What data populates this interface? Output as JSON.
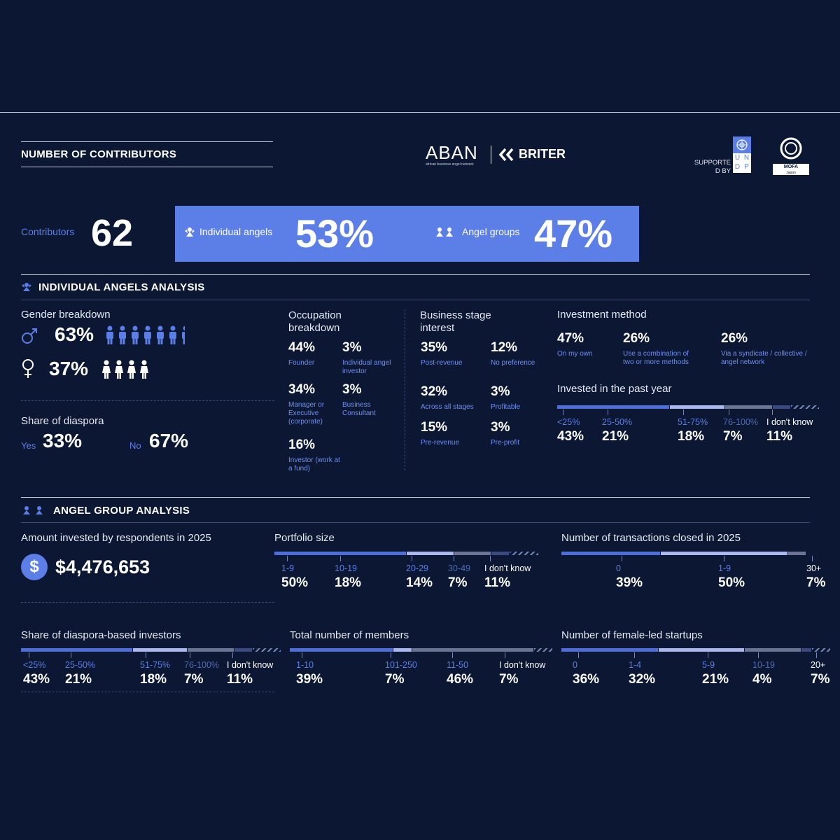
{
  "header": {
    "section_title": "NUMBER OF CONTRIBUTORS",
    "logo_aban": "ABAN",
    "logo_aban_sub": "african business angel network",
    "logo_briter": "BRITER",
    "supported_by": "SUPPORTE D BY",
    "undp_letters": [
      "U",
      "N",
      "D",
      "P"
    ],
    "mofa_label": "MOFA",
    "mofa_sub": "Japan"
  },
  "contributors": {
    "label": "Contributors",
    "value": "62",
    "individual_label": "Individual angels",
    "individual_value": "53%",
    "groups_label": "Angel groups",
    "groups_value": "47%"
  },
  "individual": {
    "title": "INDIVIDUAL ANGELS ANALYSIS",
    "gender": {
      "label": "Gender breakdown",
      "male_value": "63%",
      "female_value": "37%",
      "male_share": 0.63,
      "female_share": 0.37
    },
    "diaspora": {
      "label": "Share of diaspora",
      "yes_label": "Yes",
      "yes_value": "33%",
      "no_label": "No",
      "no_value": "67%"
    },
    "occupation": {
      "label": "Occupation breakdown",
      "items": [
        {
          "value": "44%",
          "label": "Founder"
        },
        {
          "value": "3%",
          "label": "Individual angel investor"
        },
        {
          "value": "34%",
          "label": "Manager or Executive (corporate)"
        },
        {
          "value": "3%",
          "label": "Business Consultant"
        },
        {
          "value": "16%",
          "label": "Investor (work at a fund)"
        }
      ]
    },
    "stage": {
      "label": "Business stage interest",
      "items": [
        {
          "value": "35%",
          "label": "Post-revenue"
        },
        {
          "value": "12%",
          "label": "No preference"
        },
        {
          "value": "32%",
          "label": "Across all stages"
        },
        {
          "value": "3%",
          "label": "Profitable"
        },
        {
          "value": "15%",
          "label": "Pre-revenue"
        },
        {
          "value": "3%",
          "label": "Pre-profit"
        }
      ]
    },
    "method": {
      "label": "Investment method",
      "items": [
        {
          "value": "47%",
          "label": "On my own"
        },
        {
          "value": "26%",
          "label": "Use a combination of two or more methods"
        },
        {
          "value": "26%",
          "label": "Via a syndicate / collective / angel network"
        }
      ]
    },
    "past_year": {
      "label": "Invested in the past year",
      "buckets": [
        "<25%",
        "25-50%",
        "51-75%",
        "76-100%",
        "I don't know"
      ],
      "values": [
        "43%",
        "21%",
        "18%",
        "7%",
        "11%"
      ],
      "shares": [
        43,
        21,
        18,
        7,
        11
      ]
    }
  },
  "groups": {
    "title": "ANGEL GROUP ANALYSIS",
    "amount": {
      "label": "Amount invested by respondents in 2025",
      "value": "$4,476,653",
      "icon": "$"
    },
    "portfolio": {
      "label": "Portfolio size",
      "buckets": [
        "1-9",
        "10-19",
        "20-29",
        "30-49",
        "I don't know"
      ],
      "values": [
        "50%",
        "18%",
        "14%",
        "7%",
        "11%"
      ],
      "shares": [
        50,
        18,
        14,
        7,
        11
      ]
    },
    "transactions": {
      "label": "Number of transactions closed in 2025",
      "buckets": [
        "0",
        "1-9",
        "30+"
      ],
      "values": [
        "39%",
        "50%",
        "7%"
      ],
      "shares": [
        39,
        50,
        7
      ]
    },
    "diaspora": {
      "label": "Share of diaspora-based investors",
      "buckets": [
        "<25%",
        "25-50%",
        "51-75%",
        "76-100%",
        "I don't know"
      ],
      "values": [
        "43%",
        "21%",
        "18%",
        "7%",
        "11%"
      ],
      "shares": [
        43,
        21,
        18,
        7,
        11
      ]
    },
    "members": {
      "label": "Total number of members",
      "buckets": [
        "1-10",
        "101-250",
        "11-50",
        "I don't know"
      ],
      "values": [
        "39%",
        "7%",
        "46%",
        "7%"
      ],
      "shares": [
        39,
        7,
        46,
        7
      ]
    },
    "female_led": {
      "label": "Number of female-led startups",
      "buckets": [
        "0",
        "1-4",
        "5-9",
        "10-19",
        "20+"
      ],
      "values": [
        "36%",
        "32%",
        "21%",
        "4%",
        "7%"
      ],
      "shares": [
        36,
        32,
        21,
        4,
        7
      ]
    }
  },
  "colors": {
    "background": "#0b1733",
    "accent": "#5b7fe6",
    "bar1": "#4e6ed9",
    "bar2": "#aab8ee",
    "bar3": "#6a7595",
    "bar4": "#3a4a80"
  }
}
